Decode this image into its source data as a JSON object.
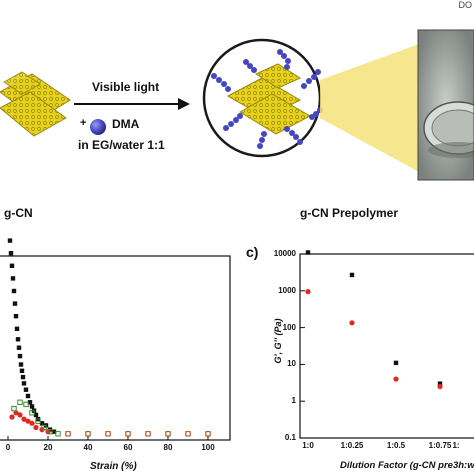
{
  "corner_text": "DO",
  "scheme": {
    "arrow_top_label": "Visible light",
    "reagent_plus": "+",
    "reagent_name": "DMA",
    "solvent": "in EG/water 1:1",
    "left_caption": "g-CN",
    "right_caption": "g-CN Prepolymer"
  },
  "panel_b": {
    "xlabel": "Strain (%)",
    "x_ticks": [
      "0",
      "20",
      "40",
      "60",
      "80",
      "100"
    ]
  },
  "panel_c": {
    "panel_letter": "c)",
    "ylabel": "G', G'' (Pa)",
    "xlabel": "Dilution Factor (g-CN pre3h:w",
    "y_ticks": [
      "10000",
      "1000",
      "100",
      "10",
      "1",
      "0.1"
    ],
    "x_ticks": [
      "1:0",
      "1:0.25",
      "1:0.5",
      "1:0.75",
      "1:"
    ]
  },
  "chart_data": [
    {
      "type": "scatter",
      "xlabel": "Strain (%)",
      "xlim": [
        0,
        100
      ],
      "x_ticks": [
        0,
        20,
        40,
        60,
        80,
        100
      ],
      "series": [
        {
          "color": "#111111",
          "marker": "filled-square",
          "points": [
            [
              0.5,
              100
            ],
            [
              1,
              94
            ],
            [
              1.5,
              88
            ],
            [
              2,
              82
            ],
            [
              2.5,
              76
            ],
            [
              3,
              70
            ],
            [
              3.5,
              64
            ],
            [
              4,
              58
            ],
            [
              4.5,
              52
            ],
            [
              5,
              47
            ],
            [
              5.5,
              43
            ],
            [
              6,
              39
            ],
            [
              6.5,
              35
            ],
            [
              7,
              32
            ],
            [
              7.5,
              29
            ],
            [
              8,
              26
            ],
            [
              9,
              23
            ],
            [
              10,
              20
            ],
            [
              11,
              17
            ],
            [
              12,
              15
            ],
            [
              13,
              13
            ],
            [
              14,
              11
            ],
            [
              15,
              9
            ],
            [
              17,
              7
            ],
            [
              19,
              6
            ],
            [
              21,
              4
            ],
            [
              23,
              3
            ]
          ]
        },
        {
          "color": "#e02a20",
          "marker": "filled-circle",
          "points": [
            [
              2,
              10
            ],
            [
              4,
              12
            ],
            [
              6,
              11
            ],
            [
              8,
              9
            ],
            [
              10,
              8
            ],
            [
              12,
              7
            ],
            [
              14,
              5
            ],
            [
              17,
              4
            ],
            [
              20,
              3
            ]
          ]
        },
        {
          "color": "#3a8a2a",
          "marker": "open-square",
          "points": [
            [
              3,
              14
            ],
            [
              6,
              17
            ],
            [
              9,
              16
            ],
            [
              12,
              12
            ],
            [
              15,
              8
            ],
            [
              18,
              5
            ],
            [
              21,
              3
            ],
            [
              25,
              2
            ],
            [
              30,
              2
            ],
            [
              40,
              2
            ],
            [
              50,
              2
            ],
            [
              60,
              2
            ],
            [
              70,
              2
            ],
            [
              80,
              2
            ],
            [
              90,
              2
            ],
            [
              100,
              2
            ]
          ]
        },
        {
          "color": "#e04a2a",
          "marker": "open-circle",
          "points": [
            [
              30,
              2
            ],
            [
              40,
              2
            ],
            [
              50,
              2
            ],
            [
              60,
              2
            ],
            [
              70,
              2
            ],
            [
              80,
              2
            ],
            [
              90,
              2
            ],
            [
              100,
              2
            ]
          ]
        }
      ]
    },
    {
      "type": "scatter",
      "ylabel": "G', G'' (Pa)",
      "xlabel": "Dilution Factor (g-CN pre3h:w",
      "yscale": "log",
      "ylim": [
        0.1,
        10000
      ],
      "categories": [
        "1:0",
        "1:0.25",
        "1:0.5",
        "1:0.75",
        "1:"
      ],
      "series": [
        {
          "color": "#111111",
          "marker": "filled-square",
          "values": [
            11000,
            2700,
            11,
            3,
            1
          ]
        },
        {
          "color": "#e02a20",
          "marker": "filled-circle",
          "values": [
            950,
            135,
            4,
            2.5,
            1.3
          ]
        }
      ]
    }
  ]
}
